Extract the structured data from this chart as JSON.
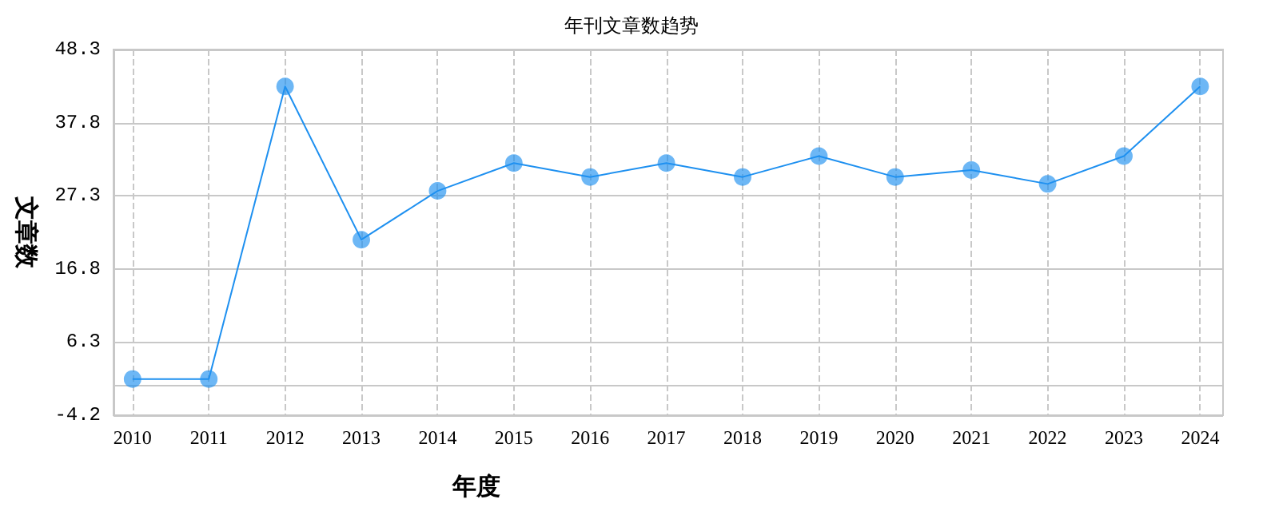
{
  "chart_data": {
    "type": "line",
    "title": "年刊文章数趋势",
    "xlabel": "年度",
    "ylabel": "文章数",
    "x": [
      2010,
      2011,
      2012,
      2013,
      2014,
      2015,
      2016,
      2017,
      2018,
      2019,
      2020,
      2021,
      2022,
      2023,
      2024
    ],
    "series": [
      {
        "color": "#1e90f0",
        "values": [
          1,
          1,
          43,
          21,
          28,
          32,
          30,
          32,
          30,
          33,
          30,
          31,
          29,
          33,
          43
        ]
      }
    ],
    "xlim": [
      2009.75,
      2024.3
    ],
    "xticks": [
      2010,
      2011,
      2012,
      2013,
      2014,
      2015,
      2016,
      2017,
      2018,
      2019,
      2020,
      2021,
      2022,
      2023,
      2024
    ],
    "ylim": [
      -4.2,
      48.3
    ],
    "yticks": [
      -4.2,
      6.3,
      16.8,
      27.3,
      37.8,
      48.3
    ],
    "grid": true,
    "marker": "circle",
    "line_style": "solid"
  }
}
